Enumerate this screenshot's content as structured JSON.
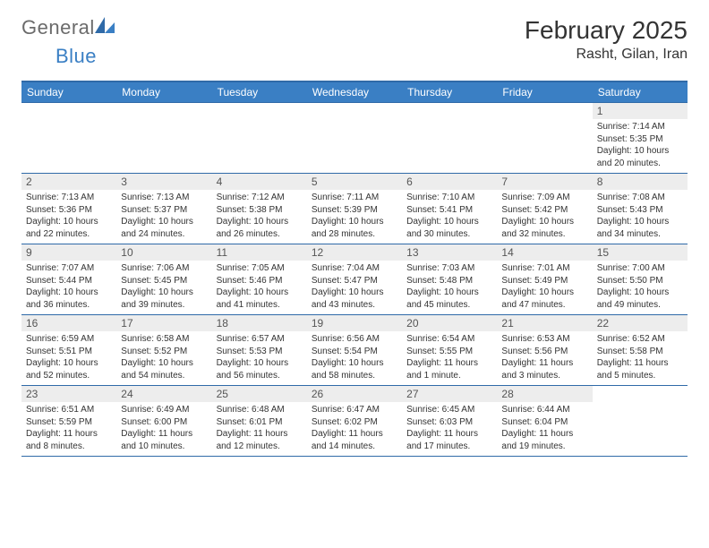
{
  "logo": {
    "general": "General",
    "blue": "Blue"
  },
  "title": "February 2025",
  "subtitle": "Rasht, Gilan, Iran",
  "colors": {
    "header_bg": "#3a7fc4",
    "header_border": "#2f6aa8",
    "daynum_bg": "#ededed",
    "text": "#333333",
    "logo_gray": "#6b6b6b",
    "logo_blue": "#3a7fc4"
  },
  "weekdays": [
    "Sunday",
    "Monday",
    "Tuesday",
    "Wednesday",
    "Thursday",
    "Friday",
    "Saturday"
  ],
  "weeks": [
    [
      {
        "n": "",
        "sr": "",
        "ss": "",
        "dl": ""
      },
      {
        "n": "",
        "sr": "",
        "ss": "",
        "dl": ""
      },
      {
        "n": "",
        "sr": "",
        "ss": "",
        "dl": ""
      },
      {
        "n": "",
        "sr": "",
        "ss": "",
        "dl": ""
      },
      {
        "n": "",
        "sr": "",
        "ss": "",
        "dl": ""
      },
      {
        "n": "",
        "sr": "",
        "ss": "",
        "dl": ""
      },
      {
        "n": "1",
        "sr": "Sunrise: 7:14 AM",
        "ss": "Sunset: 5:35 PM",
        "dl": "Daylight: 10 hours and 20 minutes."
      }
    ],
    [
      {
        "n": "2",
        "sr": "Sunrise: 7:13 AM",
        "ss": "Sunset: 5:36 PM",
        "dl": "Daylight: 10 hours and 22 minutes."
      },
      {
        "n": "3",
        "sr": "Sunrise: 7:13 AM",
        "ss": "Sunset: 5:37 PM",
        "dl": "Daylight: 10 hours and 24 minutes."
      },
      {
        "n": "4",
        "sr": "Sunrise: 7:12 AM",
        "ss": "Sunset: 5:38 PM",
        "dl": "Daylight: 10 hours and 26 minutes."
      },
      {
        "n": "5",
        "sr": "Sunrise: 7:11 AM",
        "ss": "Sunset: 5:39 PM",
        "dl": "Daylight: 10 hours and 28 minutes."
      },
      {
        "n": "6",
        "sr": "Sunrise: 7:10 AM",
        "ss": "Sunset: 5:41 PM",
        "dl": "Daylight: 10 hours and 30 minutes."
      },
      {
        "n": "7",
        "sr": "Sunrise: 7:09 AM",
        "ss": "Sunset: 5:42 PM",
        "dl": "Daylight: 10 hours and 32 minutes."
      },
      {
        "n": "8",
        "sr": "Sunrise: 7:08 AM",
        "ss": "Sunset: 5:43 PM",
        "dl": "Daylight: 10 hours and 34 minutes."
      }
    ],
    [
      {
        "n": "9",
        "sr": "Sunrise: 7:07 AM",
        "ss": "Sunset: 5:44 PM",
        "dl": "Daylight: 10 hours and 36 minutes."
      },
      {
        "n": "10",
        "sr": "Sunrise: 7:06 AM",
        "ss": "Sunset: 5:45 PM",
        "dl": "Daylight: 10 hours and 39 minutes."
      },
      {
        "n": "11",
        "sr": "Sunrise: 7:05 AM",
        "ss": "Sunset: 5:46 PM",
        "dl": "Daylight: 10 hours and 41 minutes."
      },
      {
        "n": "12",
        "sr": "Sunrise: 7:04 AM",
        "ss": "Sunset: 5:47 PM",
        "dl": "Daylight: 10 hours and 43 minutes."
      },
      {
        "n": "13",
        "sr": "Sunrise: 7:03 AM",
        "ss": "Sunset: 5:48 PM",
        "dl": "Daylight: 10 hours and 45 minutes."
      },
      {
        "n": "14",
        "sr": "Sunrise: 7:01 AM",
        "ss": "Sunset: 5:49 PM",
        "dl": "Daylight: 10 hours and 47 minutes."
      },
      {
        "n": "15",
        "sr": "Sunrise: 7:00 AM",
        "ss": "Sunset: 5:50 PM",
        "dl": "Daylight: 10 hours and 49 minutes."
      }
    ],
    [
      {
        "n": "16",
        "sr": "Sunrise: 6:59 AM",
        "ss": "Sunset: 5:51 PM",
        "dl": "Daylight: 10 hours and 52 minutes."
      },
      {
        "n": "17",
        "sr": "Sunrise: 6:58 AM",
        "ss": "Sunset: 5:52 PM",
        "dl": "Daylight: 10 hours and 54 minutes."
      },
      {
        "n": "18",
        "sr": "Sunrise: 6:57 AM",
        "ss": "Sunset: 5:53 PM",
        "dl": "Daylight: 10 hours and 56 minutes."
      },
      {
        "n": "19",
        "sr": "Sunrise: 6:56 AM",
        "ss": "Sunset: 5:54 PM",
        "dl": "Daylight: 10 hours and 58 minutes."
      },
      {
        "n": "20",
        "sr": "Sunrise: 6:54 AM",
        "ss": "Sunset: 5:55 PM",
        "dl": "Daylight: 11 hours and 1 minute."
      },
      {
        "n": "21",
        "sr": "Sunrise: 6:53 AM",
        "ss": "Sunset: 5:56 PM",
        "dl": "Daylight: 11 hours and 3 minutes."
      },
      {
        "n": "22",
        "sr": "Sunrise: 6:52 AM",
        "ss": "Sunset: 5:58 PM",
        "dl": "Daylight: 11 hours and 5 minutes."
      }
    ],
    [
      {
        "n": "23",
        "sr": "Sunrise: 6:51 AM",
        "ss": "Sunset: 5:59 PM",
        "dl": "Daylight: 11 hours and 8 minutes."
      },
      {
        "n": "24",
        "sr": "Sunrise: 6:49 AM",
        "ss": "Sunset: 6:00 PM",
        "dl": "Daylight: 11 hours and 10 minutes."
      },
      {
        "n": "25",
        "sr": "Sunrise: 6:48 AM",
        "ss": "Sunset: 6:01 PM",
        "dl": "Daylight: 11 hours and 12 minutes."
      },
      {
        "n": "26",
        "sr": "Sunrise: 6:47 AM",
        "ss": "Sunset: 6:02 PM",
        "dl": "Daylight: 11 hours and 14 minutes."
      },
      {
        "n": "27",
        "sr": "Sunrise: 6:45 AM",
        "ss": "Sunset: 6:03 PM",
        "dl": "Daylight: 11 hours and 17 minutes."
      },
      {
        "n": "28",
        "sr": "Sunrise: 6:44 AM",
        "ss": "Sunset: 6:04 PM",
        "dl": "Daylight: 11 hours and 19 minutes."
      },
      {
        "n": "",
        "sr": "",
        "ss": "",
        "dl": ""
      }
    ]
  ]
}
